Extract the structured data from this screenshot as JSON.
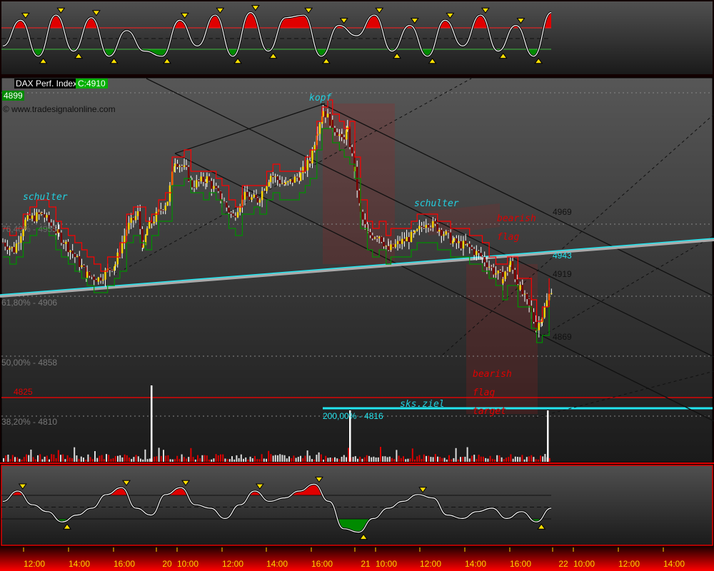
{
  "header": {
    "symbol": "DAX Perf. Index",
    "close_label": "C:4910",
    "last_price": "4899",
    "watermark": "© www.tradesignalonline.com"
  },
  "colors": {
    "up": "#ffd800",
    "down": "#7a0000",
    "stop_upper": "#ff0000",
    "stop_lower": "#009000",
    "trendline": "#22e6f0",
    "target": "#ff0000",
    "fib": "#888888"
  },
  "fib_labels": {
    "f764": "76,40% - 4955",
    "f618": "61,80% - 4906",
    "f500": "50,00% - 4858",
    "f382": "38,20% - 4810",
    "ext200": "200,00% - 4816"
  },
  "level_labels": {
    "l4969": "4969",
    "l4943": "4943",
    "l4919": "4919",
    "l4869": "4869",
    "l4825": "4825"
  },
  "annotations": {
    "kopf": "kopf",
    "schulter_left": "schulter",
    "schulter_right": "schulter",
    "flag1": "bearish",
    "flag2": "flag",
    "target1": "bearish",
    "target2": "flag",
    "target3": "target",
    "sks": "sks.ziel"
  },
  "chart_data": {
    "type": "candlestick",
    "title": "DAX Perf. Index",
    "y_levels": [
      4969,
      4943,
      4919,
      4906,
      4869,
      4858,
      4825,
      4816,
      4810
    ],
    "x_ticks": [
      "12:00",
      "14:00",
      "16:00",
      "20",
      "10:00",
      "12:00",
      "14:00",
      "16:00",
      "21",
      "10:00",
      "12:00",
      "14:00",
      "16:00",
      "22",
      "10:00",
      "12:00",
      "14:00"
    ],
    "price_path": [
      [
        "19 11:00",
        4949
      ],
      [
        "19 11:30",
        4943
      ],
      [
        "19 12:00",
        4966
      ],
      [
        "19 12:45",
        4972
      ],
      [
        "19 13:30",
        4955
      ],
      [
        "19 14:00",
        4943
      ],
      [
        "19 14:45",
        4923
      ],
      [
        "19 15:15",
        4920
      ],
      [
        "19 16:00",
        4932
      ],
      [
        "19 16:30",
        4960
      ],
      [
        "19 17:00",
        4972
      ],
      [
        "19 17:15",
        4943
      ],
      [
        "19 17:25",
        4960
      ],
      [
        "20 09:30",
        4983
      ],
      [
        "20 09:50",
        5015
      ],
      [
        "20 10:20",
        5006
      ],
      [
        "20 10:35",
        4995
      ],
      [
        "20 11:15",
        5000
      ],
      [
        "20 11:55",
        4983
      ],
      [
        "20 12:25",
        4969
      ],
      [
        "20 12:50",
        4986
      ],
      [
        "20 13:30",
        4983
      ],
      [
        "20 14:05",
        5003
      ],
      [
        "20 14:45",
        4995
      ],
      [
        "20 15:25",
        5003
      ],
      [
        "20 15:50",
        5015
      ],
      [
        "20 16:10",
        5040
      ],
      [
        "20 16:25",
        5055
      ],
      [
        "20 16:50",
        5043
      ],
      [
        "20 17:15",
        5032
      ],
      [
        "20 17:30",
        5038
      ],
      [
        "21 09:00",
        5006
      ],
      [
        "21 09:15",
        4972
      ],
      [
        "21 09:35",
        4955
      ],
      [
        "21 10:05",
        4955
      ],
      [
        "21 10:30",
        4943
      ],
      [
        "21 11:00",
        4949
      ],
      [
        "21 11:40",
        4955
      ],
      [
        "21 12:10",
        4966
      ],
      [
        "21 12:45",
        4960
      ],
      [
        "21 13:25",
        4949
      ],
      [
        "21 14:00",
        4946
      ],
      [
        "21 14:40",
        4937
      ],
      [
        "21 15:10",
        4926
      ],
      [
        "21 15:35",
        4920
      ],
      [
        "21 15:55",
        4932
      ],
      [
        "21 16:15",
        4915
      ],
      [
        "21 16:45",
        4897
      ],
      [
        "21 17:05",
        4880
      ],
      [
        "21 17:20",
        4891
      ],
      [
        "22 09:00",
        4915
      ]
    ],
    "volume_spikes": [
      [
        "20 09:00",
        1
      ],
      [
        "21 09:00",
        1
      ],
      [
        "22 09:00",
        1
      ]
    ],
    "oscillator_top": [
      0.3,
      0.8,
      0.1,
      0.9,
      0.2,
      0.85,
      0.1,
      0.6,
      0.2,
      0.1,
      0.8,
      0.3,
      0.9,
      0.1,
      0.95,
      0.2,
      0.85,
      0.9,
      0.1,
      0.7,
      0.5,
      0.9,
      0.2,
      0.7,
      0.1,
      0.8,
      0.3,
      0.9,
      0.2,
      0.7,
      0.1,
      0.95
    ],
    "oscillator_bottom": [
      0.6,
      0.75,
      0.55,
      0.45,
      0.3,
      0.4,
      0.5,
      0.7,
      0.8,
      0.5,
      0.4,
      0.7,
      0.8,
      0.55,
      0.5,
      0.35,
      0.55,
      0.75,
      0.6,
      0.65,
      0.75,
      0.85,
      0.6,
      0.2,
      0.15,
      0.35,
      0.5,
      0.6,
      0.7,
      0.65,
      0.4,
      0.35,
      0.45,
      0.5,
      0.35,
      0.45,
      0.3,
      0.5
    ]
  }
}
